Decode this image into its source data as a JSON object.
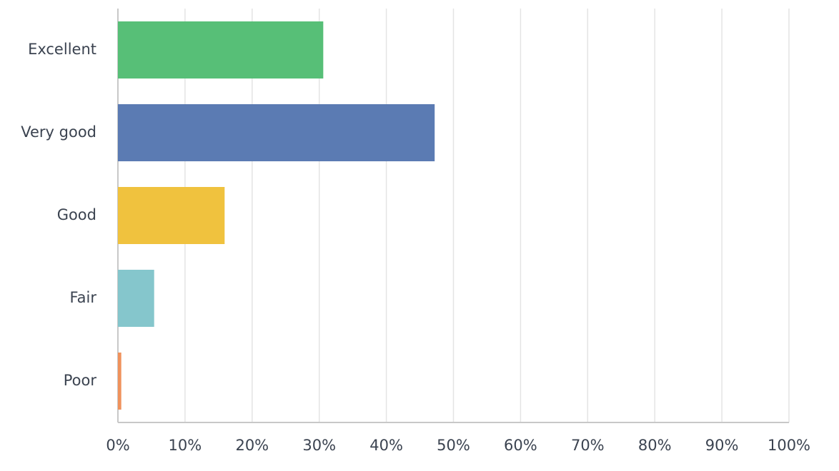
{
  "chart_data": {
    "type": "bar",
    "horizontal": true,
    "categories": [
      "Excellent",
      "Very good",
      "Good",
      "Fair",
      "Poor"
    ],
    "values": [
      30.6,
      47.2,
      15.9,
      5.4,
      0.5
    ],
    "colors": [
      "#57bf77",
      "#5b7bb3",
      "#f0c23e",
      "#85c6cc",
      "#f0925c"
    ],
    "xlim": [
      0,
      100
    ],
    "xticks": [
      {
        "value": 0,
        "label": "0%"
      },
      {
        "value": 10,
        "label": "10%"
      },
      {
        "value": 20,
        "label": "20%"
      },
      {
        "value": 30,
        "label": "30%"
      },
      {
        "value": 40,
        "label": "40%"
      },
      {
        "value": 50,
        "label": "50%"
      },
      {
        "value": 60,
        "label": "60%"
      },
      {
        "value": 70,
        "label": "70%"
      },
      {
        "value": 80,
        "label": "80%"
      },
      {
        "value": 90,
        "label": "90%"
      },
      {
        "value": 100,
        "label": "100%"
      }
    ],
    "grid": true
  }
}
